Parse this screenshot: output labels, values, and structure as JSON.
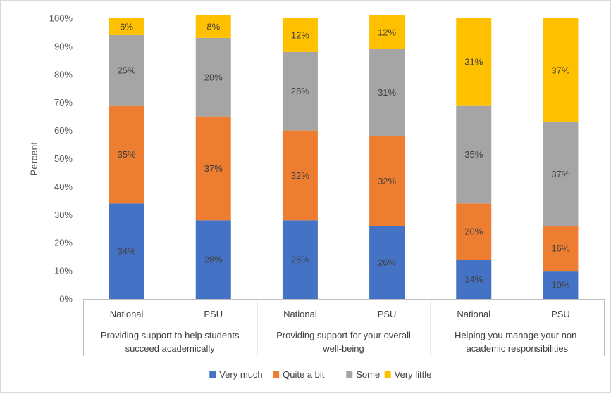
{
  "chart_data": {
    "type": "bar",
    "stacked": true,
    "title": "",
    "xlabel": "",
    "ylabel": "Percent",
    "ylim": [
      0,
      100
    ],
    "yticks": [
      "0%",
      "10%",
      "20%",
      "30%",
      "40%",
      "50%",
      "60%",
      "70%",
      "80%",
      "90%",
      "100%"
    ],
    "grid": false,
    "legend_position": "bottom",
    "groups": [
      {
        "label_lines": [
          "Providing support to help students",
          "succeed academically"
        ],
        "categories": [
          "National",
          "PSU"
        ]
      },
      {
        "label_lines": [
          "Providing support for your overall",
          "well-being"
        ],
        "categories": [
          "National",
          "PSU"
        ]
      },
      {
        "label_lines": [
          "Helping you manage your non-",
          "academic responsibilities"
        ],
        "categories": [
          "National",
          "PSU"
        ]
      }
    ],
    "series": [
      {
        "name": "Very much",
        "color": "#4472C4",
        "values": [
          34,
          28,
          28,
          26,
          14,
          10
        ],
        "labels": [
          "34%",
          "28%",
          "28%",
          "26%",
          "14%",
          "10%"
        ]
      },
      {
        "name": "Quite a bit",
        "color": "#ED7D31",
        "values": [
          35,
          37,
          32,
          32,
          20,
          16
        ],
        "labels": [
          "35%",
          "37%",
          "32%",
          "32%",
          "20%",
          "16%"
        ]
      },
      {
        "name": "Some",
        "color": "#A5A5A5",
        "values": [
          25,
          28,
          28,
          31,
          35,
          37
        ],
        "labels": [
          "25%",
          "28%",
          "28%",
          "31%",
          "35%",
          "37%"
        ]
      },
      {
        "name": "Very little",
        "color": "#FFC000",
        "values": [
          6,
          8,
          12,
          12,
          31,
          37
        ],
        "labels": [
          "6%",
          "8%",
          "12%",
          "12%",
          "31%",
          "37%"
        ]
      }
    ]
  }
}
